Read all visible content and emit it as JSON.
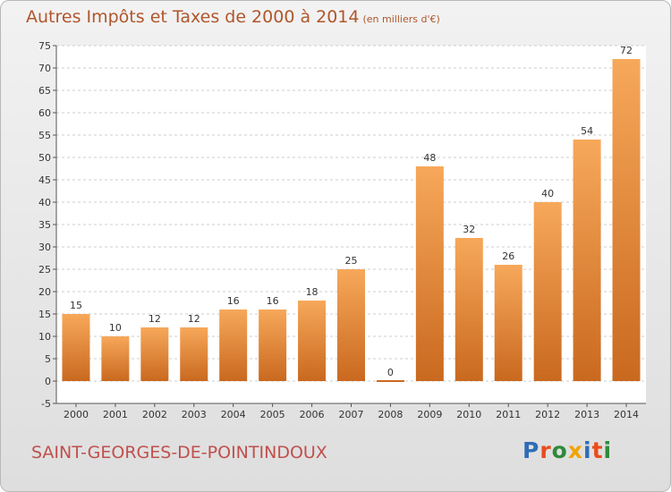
{
  "title": {
    "main": "Autres Impôts et Taxes de 2000 à 2014",
    "unit": "(en milliers d'€)"
  },
  "town": "SAINT-GEORGES-DE-POINTINDOUX",
  "logo": {
    "text": "Proxiti",
    "letters": [
      {
        "char": "P",
        "color": "#2f6db5"
      },
      {
        "char": "r",
        "color": "#e84d1c"
      },
      {
        "char": "o",
        "color": "#2f8a3a"
      },
      {
        "char": "x",
        "color": "#f2a400"
      },
      {
        "char": "i",
        "color": "#2f6db5"
      },
      {
        "char": "t",
        "color": "#e84d1c"
      },
      {
        "char": "i",
        "color": "#2f8a3a"
      }
    ]
  },
  "colors": {
    "title": "#b0562b",
    "town": "#c0504d",
    "bar_light": "#f7a85a",
    "bar_dark": "#c9691f",
    "grid": "#cccccc",
    "axis": "#555555"
  },
  "chart_data": {
    "type": "bar",
    "categories": [
      "2000",
      "2001",
      "2002",
      "2003",
      "2004",
      "2005",
      "2006",
      "2007",
      "2008",
      "2009",
      "2010",
      "2011",
      "2012",
      "2013",
      "2014"
    ],
    "values": [
      15,
      10,
      12,
      12,
      16,
      16,
      18,
      25,
      0,
      48,
      32,
      26,
      40,
      54,
      72
    ],
    "title": "Autres Impôts et Taxes de 2000 à 2014",
    "subtitle": "(en milliers d'€)",
    "ylim": [
      -5,
      75
    ],
    "yticks": [
      -5,
      0,
      5,
      10,
      15,
      20,
      25,
      30,
      35,
      40,
      45,
      50,
      55,
      60,
      65,
      70,
      75
    ],
    "grid": "horizontal dashed"
  }
}
